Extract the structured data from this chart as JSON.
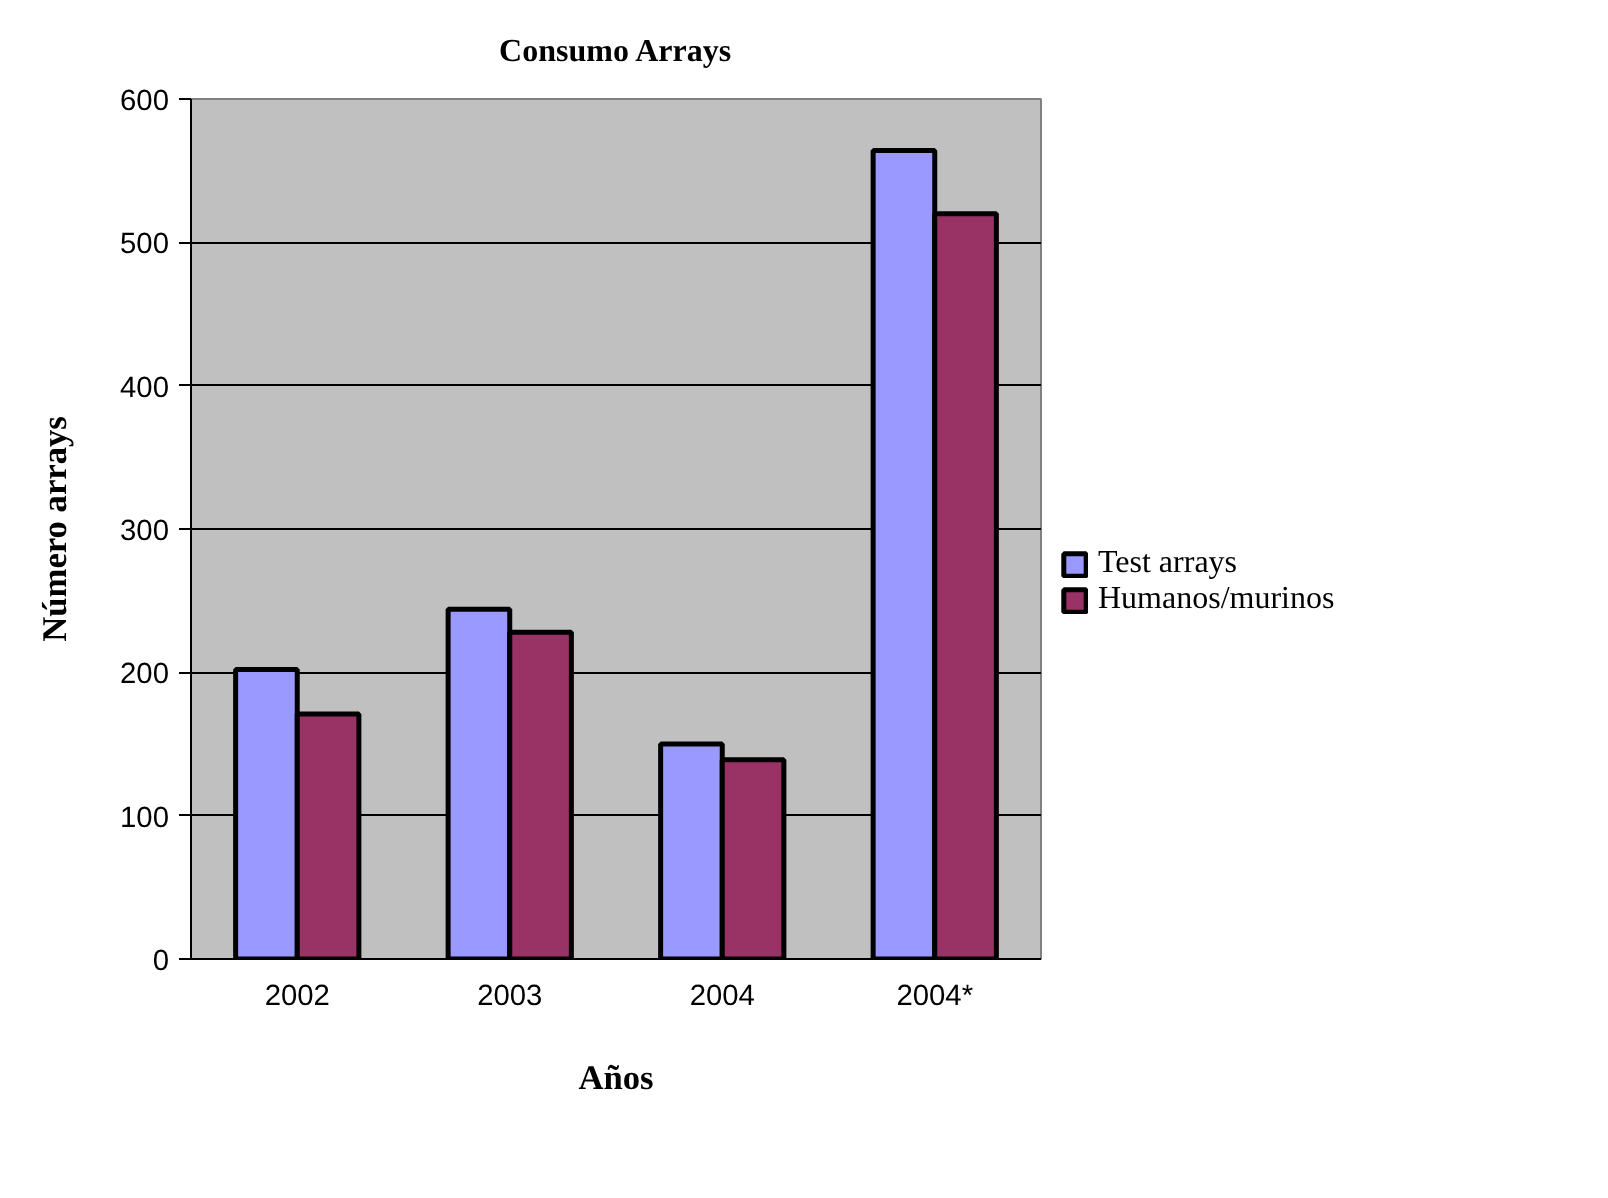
{
  "chart_data": {
    "type": "bar",
    "title": "Consumo Arrays",
    "xlabel": "Años",
    "ylabel": "Número arrays",
    "categories": [
      "2002",
      "2003",
      "2004",
      "2004*"
    ],
    "series": [
      {
        "name": "Test arrays",
        "color": "#9999ff",
        "values": [
          202,
          244,
          150,
          564
        ]
      },
      {
        "name": "Humanos/murinos",
        "color": "#993366",
        "values": [
          171,
          228,
          139,
          520
        ]
      }
    ],
    "ylim": [
      0,
      600
    ],
    "yticks": [
      0,
      100,
      200,
      300,
      400,
      500,
      600
    ],
    "grid": "y",
    "legend": "right"
  }
}
